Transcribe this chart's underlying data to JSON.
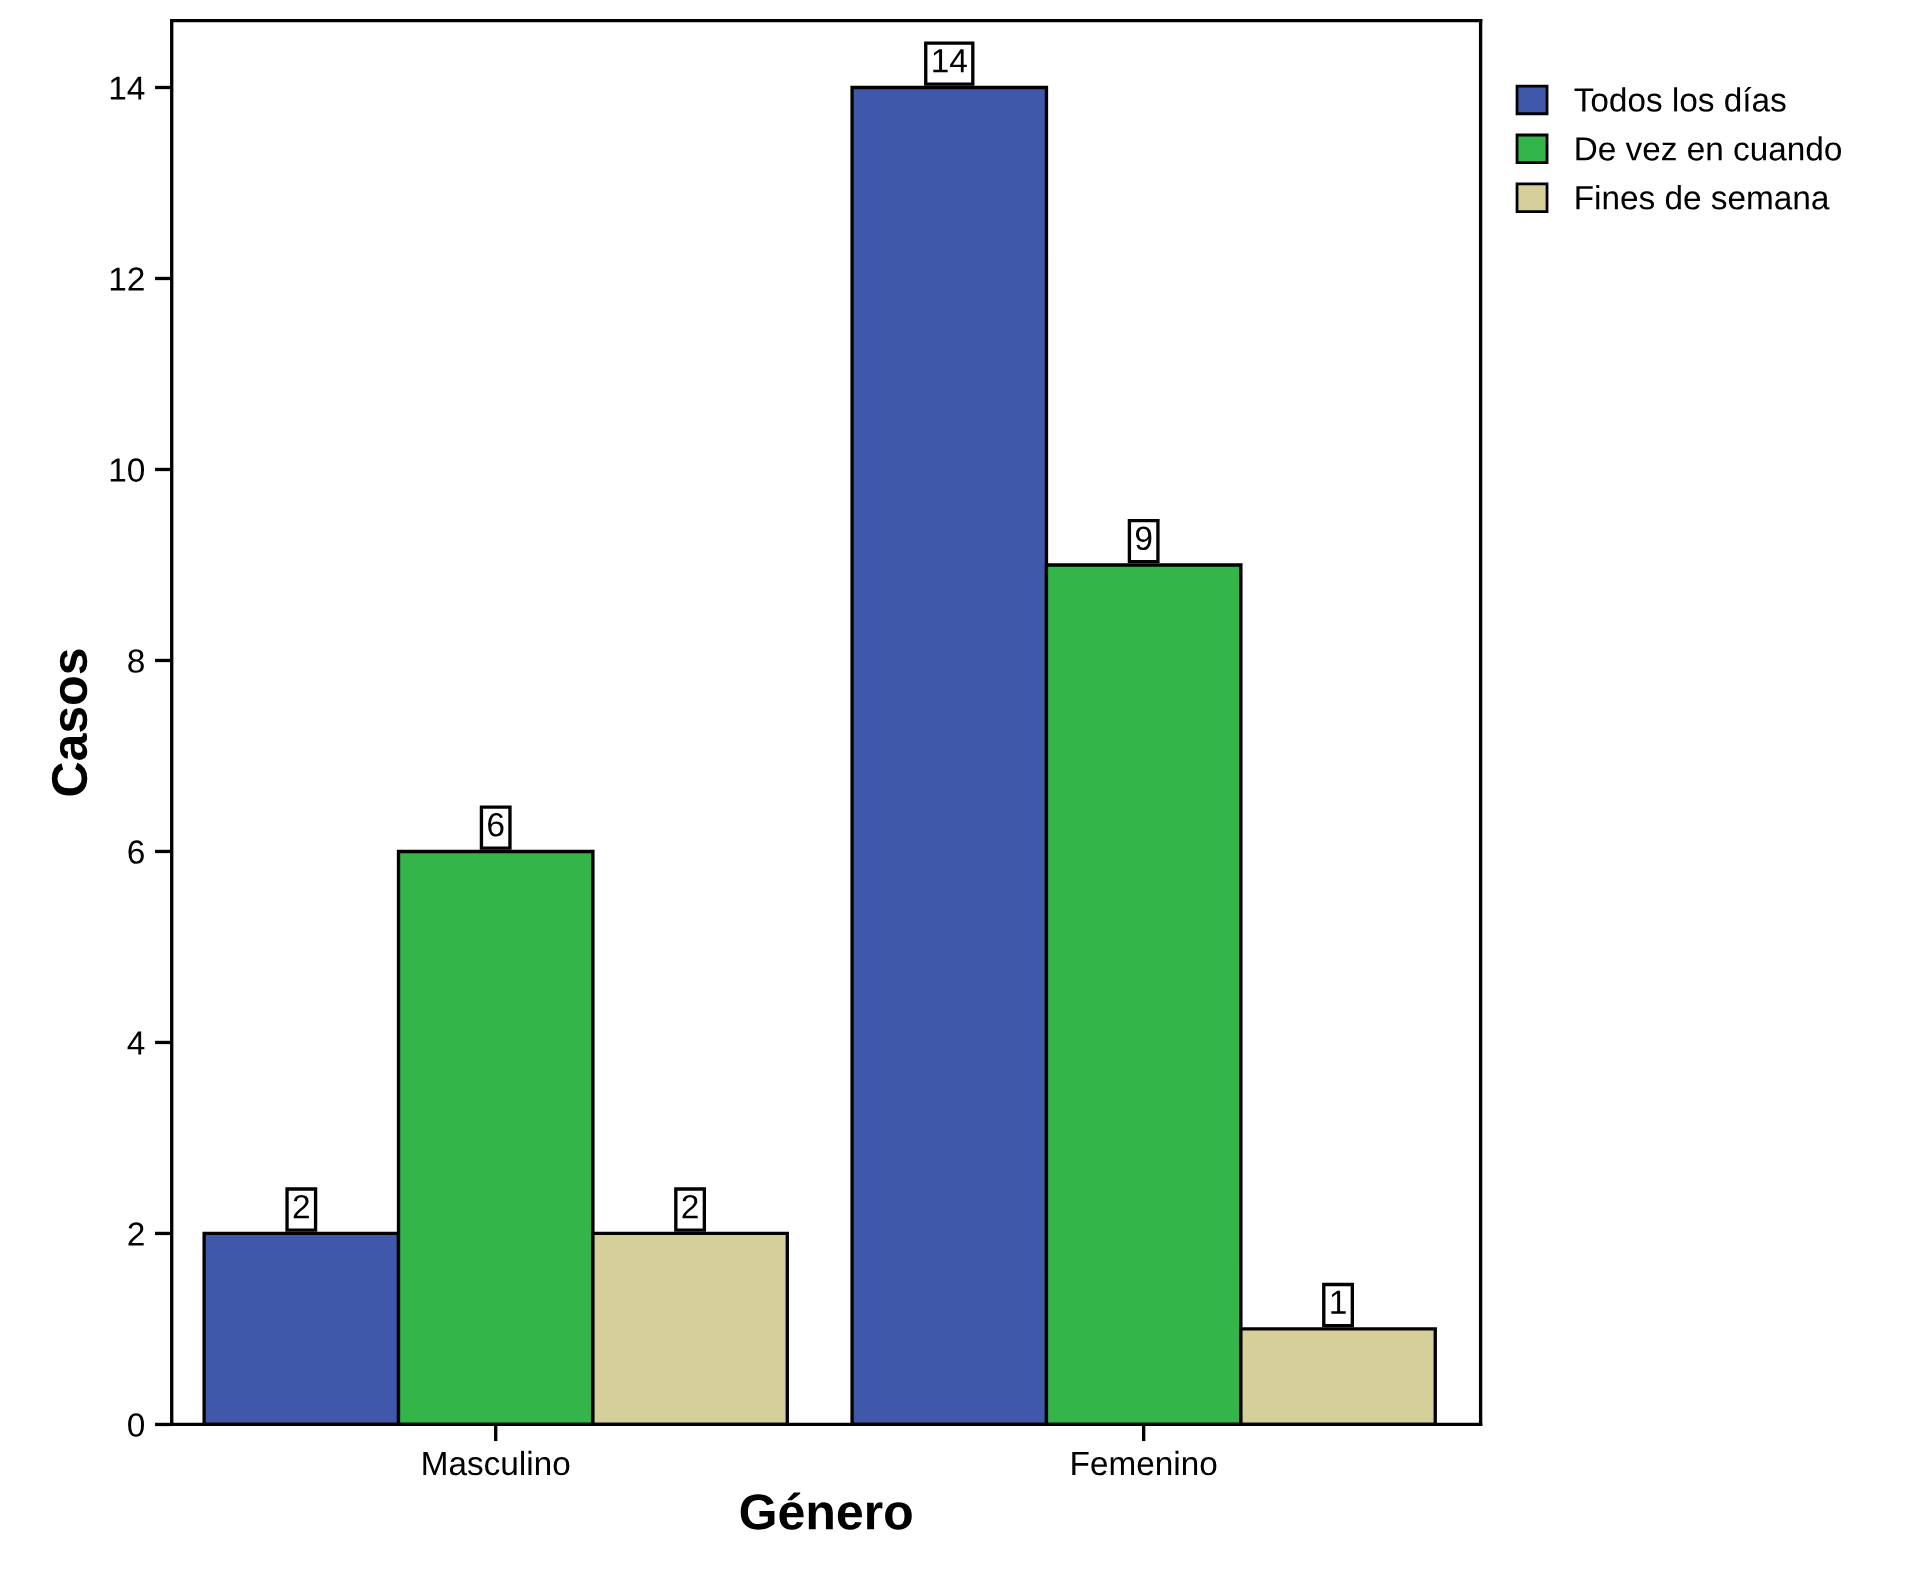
{
  "chart_data": {
    "type": "bar",
    "xlabel": "Género",
    "ylabel": "Casos",
    "categories": [
      "Masculino",
      "Femenino"
    ],
    "series": [
      {
        "name": "Todos los días",
        "color": "#3f58aa",
        "values": [
          2,
          14
        ]
      },
      {
        "name": "De vez en cuando",
        "color": "#33b549",
        "values": [
          6,
          9
        ]
      },
      {
        "name": "Fines de semana",
        "color": "#d5cf9a",
        "values": [
          2,
          1
        ]
      }
    ],
    "ylim": [
      0,
      14.7
    ],
    "yticks": [
      0,
      2,
      4,
      6,
      8,
      10,
      12,
      14
    ],
    "data_labels": true,
    "legend": "top right",
    "grid": false
  }
}
